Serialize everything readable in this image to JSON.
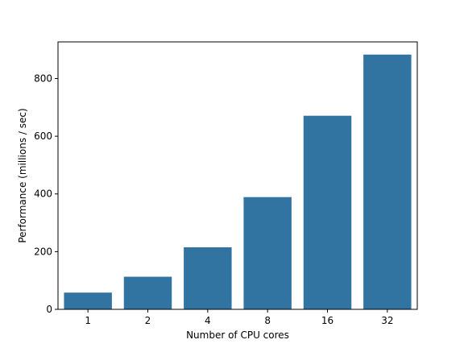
{
  "chart_data": {
    "type": "bar",
    "title": "",
    "xlabel": "Number of CPU cores",
    "ylabel": "Performance (millions / sec)",
    "categories": [
      "1",
      "2",
      "4",
      "8",
      "16",
      "32"
    ],
    "values": [
      58,
      113,
      215,
      389,
      671,
      883
    ],
    "ylim": [
      0,
      927
    ],
    "yticks": [
      0,
      200,
      400,
      600,
      800
    ],
    "grid": false,
    "bar_color": "#3274a1"
  }
}
